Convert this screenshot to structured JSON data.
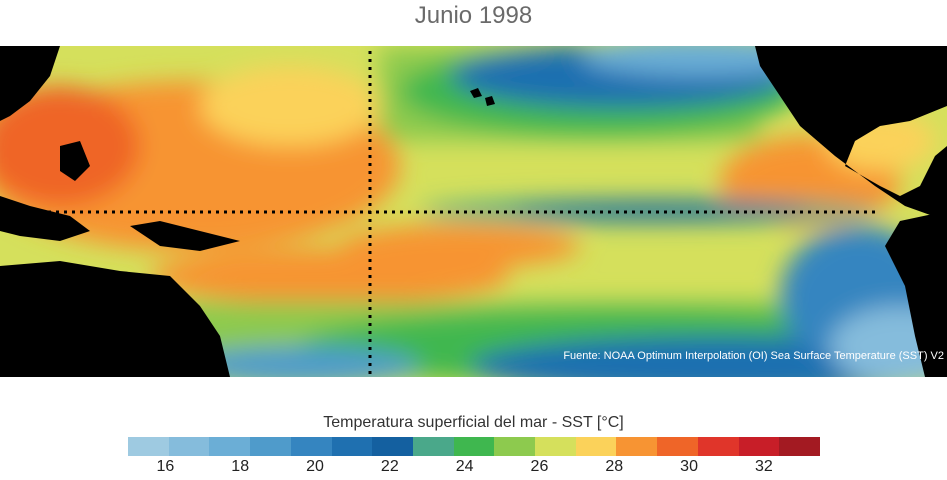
{
  "title": "Junio 1998",
  "source": "Fuente: NOAA Optimum Interpolation (OI) Sea Surface Temperature (SST) V2",
  "colorbar": {
    "title": "Temperatura superficial del mar - SST  [°C]",
    "colors": [
      "#9ecae1",
      "#85bcdc",
      "#6baed6",
      "#4f9bcb",
      "#3585c0",
      "#1f70b0",
      "#1460a0",
      "#4aa88a",
      "#3fb74f",
      "#8dca4e",
      "#d5e05c",
      "#fbd25a",
      "#f79433",
      "#ef6528",
      "#e0352a",
      "#c81e28",
      "#a31a22"
    ],
    "tick_labels": [
      "16",
      "18",
      "20",
      "22",
      "24",
      "26",
      "28",
      "30",
      "32"
    ],
    "tick_values": [
      16,
      18,
      20,
      22,
      24,
      26,
      28,
      30,
      32
    ],
    "min": 15,
    "max": 33.5
  }
}
